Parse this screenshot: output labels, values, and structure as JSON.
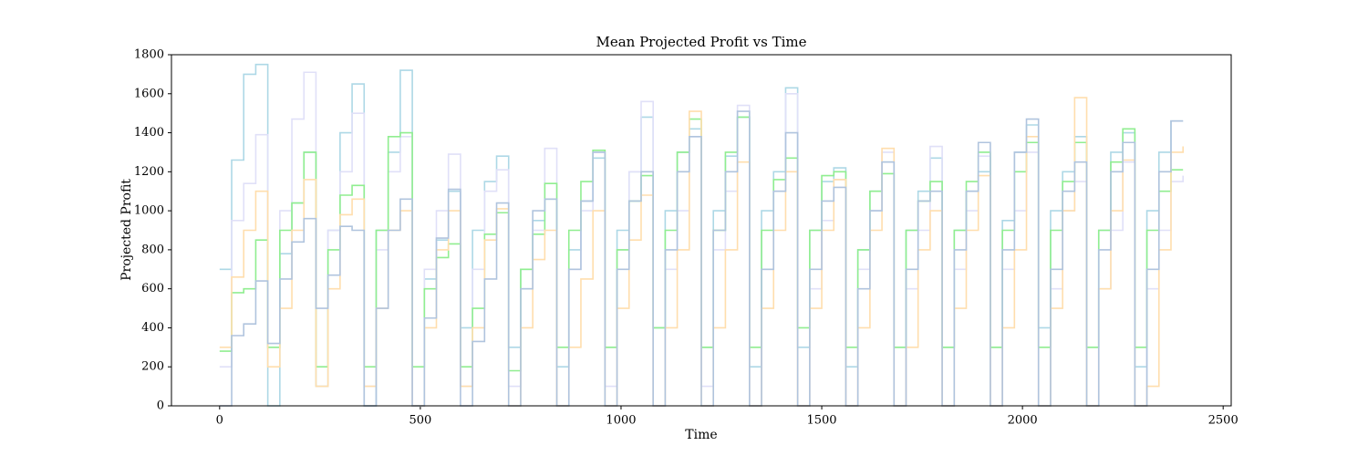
{
  "chart_data": {
    "type": "step",
    "title": "Mean Projected Profit vs Time",
    "xlabel": "Time",
    "ylabel": "Projected Profit",
    "xlim": [
      -120,
      2520
    ],
    "ylim": [
      0,
      1800
    ],
    "xticks": [
      0,
      500,
      1000,
      1500,
      2000,
      2500
    ],
    "yticks": [
      0,
      200,
      400,
      600,
      800,
      1000,
      1200,
      1400,
      1600,
      1800
    ],
    "x": [
      0,
      30,
      60,
      90,
      120,
      150,
      180,
      210,
      240,
      270,
      300,
      330,
      360,
      390,
      420,
      450,
      480,
      510,
      540,
      570,
      600,
      630,
      660,
      690,
      720,
      750,
      780,
      810,
      840,
      870,
      900,
      930,
      960,
      990,
      1020,
      1050,
      1080,
      1110,
      1140,
      1170,
      1200,
      1230,
      1260,
      1290,
      1320,
      1350,
      1380,
      1410,
      1440,
      1470,
      1500,
      1530,
      1560,
      1590,
      1620,
      1650,
      1680,
      1710,
      1740,
      1770,
      1800,
      1830,
      1860,
      1890,
      1920,
      1950,
      1980,
      2010,
      2040,
      2070,
      2100,
      2130,
      2160,
      2190,
      2220,
      2250,
      2280,
      2310,
      2340,
      2370,
      2400
    ],
    "series": [
      {
        "color": "#add8e6",
        "values": [
          700,
          1260,
          1700,
          1750,
          0,
          780,
          1040,
          1300,
          100,
          900,
          1400,
          1650,
          0,
          900,
          1300,
          1720,
          0,
          650,
          850,
          1100,
          400,
          900,
          1150,
          1280,
          300,
          700,
          950,
          1060,
          200,
          800,
          1050,
          1270,
          300,
          900,
          1200,
          1480,
          400,
          1000,
          1300,
          1420,
          300,
          1000,
          1280,
          1480,
          200,
          1000,
          1200,
          1630,
          300,
          900,
          1150,
          1220,
          200,
          800,
          1100,
          1250,
          300,
          900,
          1100,
          1270,
          300,
          900,
          1100,
          1200,
          300,
          950,
          1300,
          1440,
          400,
          1000,
          1200,
          1380,
          300,
          900,
          1300,
          1400,
          200,
          1000,
          1300,
          1460,
          1460
        ]
      },
      {
        "color": "#e0e0f8",
        "values": [
          200,
          950,
          1140,
          1390,
          300,
          1000,
          1470,
          1710,
          200,
          900,
          1200,
          1500,
          100,
          800,
          1200,
          1380,
          0,
          700,
          1000,
          1290,
          100,
          700,
          1100,
          1210,
          100,
          600,
          900,
          1320,
          0,
          700,
          1000,
          1300,
          100,
          800,
          1200,
          1560,
          0,
          700,
          1000,
          1380,
          100,
          800,
          1100,
          1540,
          0,
          700,
          1100,
          1600,
          0,
          600,
          950,
          1160,
          0,
          700,
          1000,
          1300,
          0,
          600,
          900,
          1330,
          0,
          700,
          1000,
          1280,
          0,
          700,
          1000,
          1300,
          0,
          600,
          1000,
          1150,
          0,
          600,
          900,
          1250,
          0,
          600,
          900,
          1150,
          1180
        ]
      },
      {
        "color": "#90ee90",
        "values": [
          280,
          580,
          600,
          850,
          300,
          900,
          1040,
          1300,
          200,
          800,
          1080,
          1130,
          200,
          900,
          1380,
          1400,
          200,
          600,
          760,
          830,
          200,
          500,
          880,
          990,
          180,
          700,
          880,
          1140,
          300,
          900,
          1150,
          1310,
          300,
          800,
          1050,
          1180,
          400,
          900,
          1300,
          1470,
          300,
          900,
          1300,
          1480,
          300,
          900,
          1160,
          1270,
          400,
          900,
          1180,
          1200,
          300,
          800,
          1100,
          1190,
          300,
          900,
          1050,
          1150,
          300,
          900,
          1150,
          1300,
          300,
          900,
          1200,
          1350,
          300,
          900,
          1150,
          1350,
          300,
          900,
          1250,
          1420,
          300,
          900,
          1100,
          1210,
          1210
        ]
      },
      {
        "color": "#ffdead",
        "values": [
          300,
          660,
          900,
          1100,
          200,
          500,
          900,
          1160,
          100,
          600,
          980,
          1060,
          100,
          500,
          900,
          1000,
          0,
          400,
          800,
          1000,
          100,
          400,
          850,
          1010,
          0,
          400,
          750,
          900,
          0,
          300,
          650,
          1000,
          0,
          500,
          850,
          1080,
          0,
          400,
          800,
          1510,
          0,
          400,
          800,
          1250,
          0,
          500,
          900,
          1200,
          0,
          500,
          900,
          1160,
          0,
          400,
          900,
          1320,
          0,
          300,
          800,
          1000,
          0,
          500,
          900,
          1180,
          0,
          400,
          800,
          1380,
          0,
          500,
          1000,
          1580,
          0,
          600,
          1000,
          1260,
          0,
          100,
          800,
          1300,
          1330
        ]
      },
      {
        "color": "#b0c4de",
        "values": [
          0,
          360,
          420,
          640,
          320,
          650,
          840,
          960,
          500,
          670,
          920,
          900,
          0,
          500,
          900,
          1060,
          0,
          450,
          860,
          1110,
          0,
          330,
          650,
          1040,
          0,
          600,
          1000,
          1060,
          0,
          700,
          1050,
          1300,
          0,
          700,
          1050,
          1200,
          0,
          800,
          1200,
          1380,
          0,
          900,
          1200,
          1510,
          0,
          700,
          1100,
          1400,
          0,
          700,
          1050,
          1120,
          0,
          600,
          1000,
          1250,
          0,
          700,
          1050,
          1100,
          0,
          800,
          1100,
          1350,
          0,
          800,
          1300,
          1470,
          0,
          700,
          1100,
          1250,
          0,
          800,
          1200,
          1350,
          0,
          700,
          1200,
          1460,
          1460
        ]
      }
    ]
  }
}
